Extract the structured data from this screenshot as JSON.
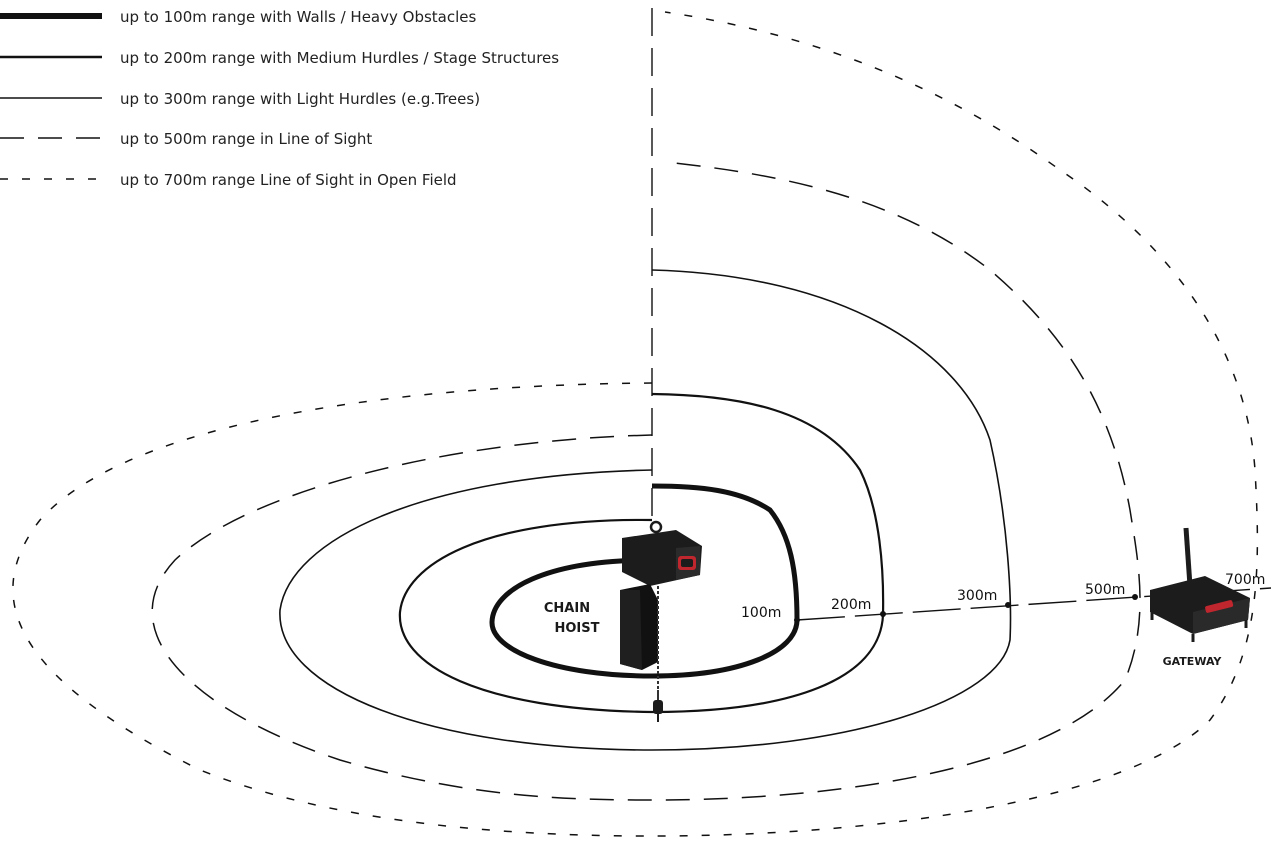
{
  "legend": [
    {
      "label": "up to 100m range with Walls / Heavy Obstacles"
    },
    {
      "label": "up to 200m range with Medium Hurdles / Stage Structures"
    },
    {
      "label": "up to 300m range with Light Hurdles (e.g.Trees)"
    },
    {
      "label": "up to 500m range in Line of Sight"
    },
    {
      "label": "up to 700m range Line of Sight in Open Field"
    }
  ],
  "distances": {
    "d100": "100m",
    "d200": "200m",
    "d300": "300m",
    "d500": "500m",
    "d700": "700m"
  },
  "devices": {
    "hoist_line1": "CHAIN",
    "hoist_line2": "HOIST",
    "gateway": "GATEWAY"
  },
  "colors": {
    "line": "#111111",
    "device_body": "#1c1c1c",
    "accent": "#c0262e"
  },
  "icons": {
    "hoist": "chain-hoist-icon",
    "gateway": "gateway-icon"
  }
}
